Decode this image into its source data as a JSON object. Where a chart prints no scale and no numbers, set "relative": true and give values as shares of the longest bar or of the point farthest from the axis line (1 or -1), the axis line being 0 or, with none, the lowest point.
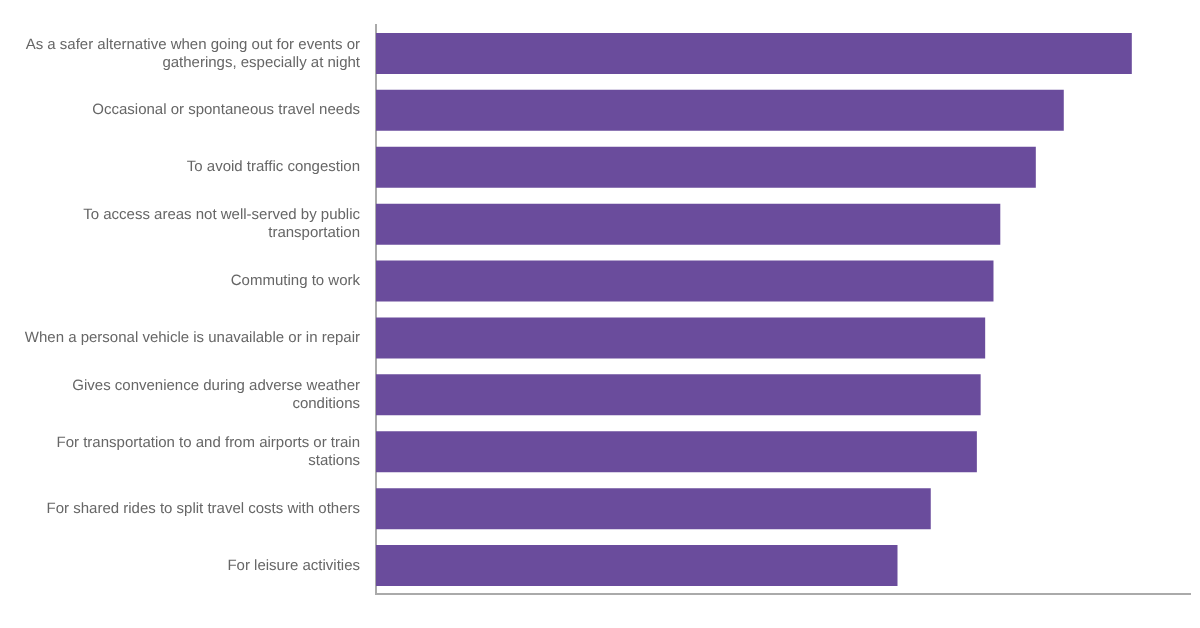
{
  "chart_data": {
    "type": "bar",
    "orientation": "horizontal",
    "relative": true,
    "grid": false,
    "legend": false,
    "categories": [
      "As a safer alternative when going out for events or gatherings, especially at night",
      "Occasional or spontaneous travel needs",
      "To avoid traffic congestion",
      "To access areas not well-served by public transportation",
      "Commuting to work",
      "When a personal vehicle is unavailable or in repair",
      "Gives convenience during adverse weather conditions",
      "For transportation to and from airports or train stations",
      "For shared rides to split travel costs with others",
      "For leisure activities"
    ],
    "series": [
      {
        "color": "#6a4c9c",
        "values": [
          1,
          0.91,
          0.873,
          0.826,
          0.817,
          0.806,
          0.8,
          0.795,
          0.734,
          0.69
        ]
      }
    ]
  }
}
